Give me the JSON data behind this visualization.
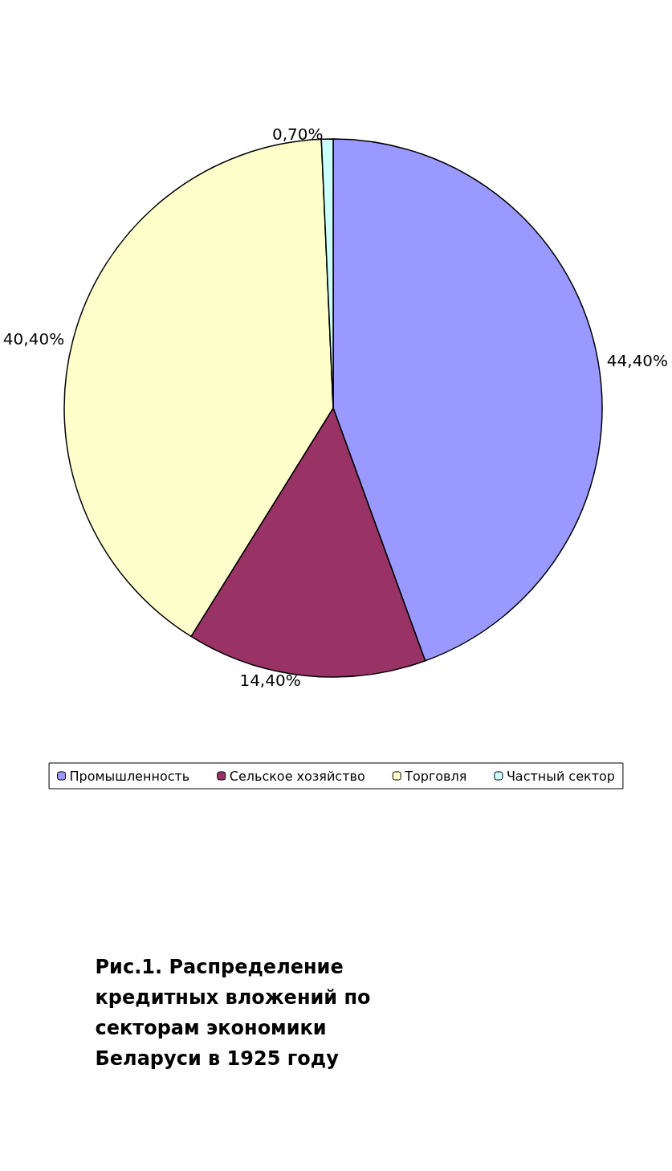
{
  "chart_data": {
    "type": "pie",
    "title": "Рис.1. Распределение кредитных вложений по секторам экономики Беларуси в 1925 году",
    "categories": [
      "Промышленность",
      "Сельское хозяйство",
      "Торговля",
      "Частный сектор"
    ],
    "values": [
      44.4,
      14.4,
      40.4,
      0.7
    ],
    "value_labels": [
      "44,40%",
      "14,40%",
      "40,40%",
      "0,70%"
    ],
    "colors": [
      "#9999ff",
      "#993366",
      "#ffffcc",
      "#ccffff"
    ],
    "legend": "bottom"
  }
}
